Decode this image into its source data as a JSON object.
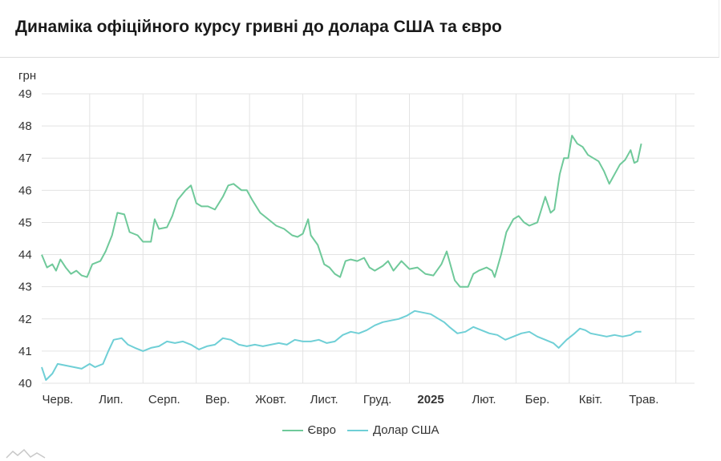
{
  "header": {
    "title": "Динаміка офіційного курсу гривні до долара США та євро"
  },
  "chart_data": {
    "type": "line",
    "ylabel": "грн",
    "ylim": [
      40,
      49
    ],
    "yticks": [
      40,
      41,
      42,
      43,
      44,
      45,
      46,
      47,
      48,
      49
    ],
    "x_tick_labels": [
      {
        "label": "Черв.",
        "x": 0.3
      },
      {
        "label": "Лип.",
        "x": 1.3
      },
      {
        "label": "Серп.",
        "x": 2.3
      },
      {
        "label": "Вер.",
        "x": 3.3
      },
      {
        "label": "Жовт.",
        "x": 4.3
      },
      {
        "label": "Лист.",
        "x": 5.3
      },
      {
        "label": "Груд.",
        "x": 6.3
      },
      {
        "label": "2025",
        "x": 7.3,
        "bold": true
      },
      {
        "label": "Лют.",
        "x": 8.3
      },
      {
        "label": "Бер.",
        "x": 9.3
      },
      {
        "label": "Квіт.",
        "x": 10.3
      },
      {
        "label": "Трав.",
        "x": 11.3
      }
    ],
    "gridlines_x": [
      0.9,
      1.9,
      2.9,
      3.9,
      4.9,
      5.9,
      6.9,
      7.9,
      8.9,
      9.9,
      10.9,
      11.9
    ],
    "xlim": [
      0,
      12.25
    ],
    "grid": true,
    "legend_position": "bottom",
    "series": [
      {
        "name": "Євро",
        "color": "#6fc99a",
        "points": [
          [
            0.0,
            44.0
          ],
          [
            0.1,
            43.6
          ],
          [
            0.2,
            43.7
          ],
          [
            0.27,
            43.5
          ],
          [
            0.35,
            43.85
          ],
          [
            0.45,
            43.6
          ],
          [
            0.55,
            43.4
          ],
          [
            0.65,
            43.5
          ],
          [
            0.75,
            43.35
          ],
          [
            0.85,
            43.3
          ],
          [
            0.95,
            43.7
          ],
          [
            1.1,
            43.8
          ],
          [
            1.2,
            44.1
          ],
          [
            1.32,
            44.6
          ],
          [
            1.42,
            45.3
          ],
          [
            1.55,
            45.25
          ],
          [
            1.65,
            44.7
          ],
          [
            1.8,
            44.6
          ],
          [
            1.9,
            44.4
          ],
          [
            2.05,
            44.4
          ],
          [
            2.12,
            45.1
          ],
          [
            2.2,
            44.8
          ],
          [
            2.35,
            44.85
          ],
          [
            2.45,
            45.2
          ],
          [
            2.55,
            45.7
          ],
          [
            2.7,
            46.0
          ],
          [
            2.8,
            46.15
          ],
          [
            2.9,
            45.6
          ],
          [
            3.0,
            45.5
          ],
          [
            3.12,
            45.5
          ],
          [
            3.25,
            45.4
          ],
          [
            3.4,
            45.8
          ],
          [
            3.5,
            46.15
          ],
          [
            3.6,
            46.2
          ],
          [
            3.75,
            46.0
          ],
          [
            3.85,
            46.0
          ],
          [
            3.95,
            45.7
          ],
          [
            4.1,
            45.3
          ],
          [
            4.25,
            45.1
          ],
          [
            4.4,
            44.9
          ],
          [
            4.55,
            44.8
          ],
          [
            4.7,
            44.6
          ],
          [
            4.8,
            44.55
          ],
          [
            4.9,
            44.65
          ],
          [
            5.0,
            45.1
          ],
          [
            5.05,
            44.6
          ],
          [
            5.18,
            44.3
          ],
          [
            5.3,
            43.7
          ],
          [
            5.4,
            43.6
          ],
          [
            5.5,
            43.4
          ],
          [
            5.6,
            43.3
          ],
          [
            5.7,
            43.8
          ],
          [
            5.8,
            43.85
          ],
          [
            5.92,
            43.8
          ],
          [
            6.05,
            43.9
          ],
          [
            6.15,
            43.6
          ],
          [
            6.25,
            43.5
          ],
          [
            6.4,
            43.65
          ],
          [
            6.5,
            43.8
          ],
          [
            6.6,
            43.5
          ],
          [
            6.75,
            43.8
          ],
          [
            6.9,
            43.55
          ],
          [
            7.05,
            43.6
          ],
          [
            7.2,
            43.4
          ],
          [
            7.35,
            43.35
          ],
          [
            7.5,
            43.7
          ],
          [
            7.6,
            44.1
          ],
          [
            7.75,
            43.2
          ],
          [
            7.85,
            43.0
          ],
          [
            8.0,
            43.0
          ],
          [
            8.1,
            43.4
          ],
          [
            8.2,
            43.5
          ],
          [
            8.35,
            43.6
          ],
          [
            8.45,
            43.5
          ],
          [
            8.5,
            43.3
          ],
          [
            8.62,
            44.0
          ],
          [
            8.72,
            44.7
          ],
          [
            8.85,
            45.1
          ],
          [
            8.95,
            45.2
          ],
          [
            9.05,
            45.0
          ],
          [
            9.15,
            44.9
          ],
          [
            9.3,
            45.0
          ],
          [
            9.45,
            45.8
          ],
          [
            9.55,
            45.3
          ],
          [
            9.62,
            45.4
          ],
          [
            9.72,
            46.5
          ],
          [
            9.8,
            47.0
          ],
          [
            9.88,
            47.0
          ],
          [
            9.95,
            47.7
          ],
          [
            10.05,
            47.45
          ],
          [
            10.15,
            47.35
          ],
          [
            10.25,
            47.1
          ],
          [
            10.35,
            47.0
          ],
          [
            10.45,
            46.9
          ],
          [
            10.55,
            46.6
          ],
          [
            10.65,
            46.2
          ],
          [
            10.75,
            46.5
          ],
          [
            10.85,
            46.8
          ],
          [
            10.95,
            46.95
          ],
          [
            11.05,
            47.25
          ],
          [
            11.12,
            46.85
          ],
          [
            11.18,
            46.9
          ],
          [
            11.25,
            47.45
          ]
        ]
      },
      {
        "name": "Долар США",
        "color": "#6fcfd6",
        "points": [
          [
            0.0,
            40.5
          ],
          [
            0.08,
            40.1
          ],
          [
            0.2,
            40.3
          ],
          [
            0.3,
            40.6
          ],
          [
            0.45,
            40.55
          ],
          [
            0.6,
            40.5
          ],
          [
            0.75,
            40.45
          ],
          [
            0.9,
            40.6
          ],
          [
            1.0,
            40.5
          ],
          [
            1.15,
            40.6
          ],
          [
            1.25,
            41.0
          ],
          [
            1.35,
            41.35
          ],
          [
            1.5,
            41.4
          ],
          [
            1.62,
            41.2
          ],
          [
            1.75,
            41.1
          ],
          [
            1.9,
            41.0
          ],
          [
            2.05,
            41.1
          ],
          [
            2.2,
            41.15
          ],
          [
            2.35,
            41.3
          ],
          [
            2.5,
            41.25
          ],
          [
            2.65,
            41.3
          ],
          [
            2.8,
            41.2
          ],
          [
            2.95,
            41.05
          ],
          [
            3.1,
            41.15
          ],
          [
            3.25,
            41.2
          ],
          [
            3.4,
            41.4
          ],
          [
            3.55,
            41.35
          ],
          [
            3.7,
            41.2
          ],
          [
            3.85,
            41.15
          ],
          [
            4.0,
            41.2
          ],
          [
            4.15,
            41.15
          ],
          [
            4.3,
            41.2
          ],
          [
            4.45,
            41.25
          ],
          [
            4.6,
            41.2
          ],
          [
            4.75,
            41.35
          ],
          [
            4.9,
            41.3
          ],
          [
            5.05,
            41.3
          ],
          [
            5.2,
            41.35
          ],
          [
            5.35,
            41.25
          ],
          [
            5.5,
            41.3
          ],
          [
            5.65,
            41.5
          ],
          [
            5.8,
            41.6
          ],
          [
            5.95,
            41.55
          ],
          [
            6.1,
            41.65
          ],
          [
            6.25,
            41.8
          ],
          [
            6.4,
            41.9
          ],
          [
            6.55,
            41.95
          ],
          [
            6.7,
            42.0
          ],
          [
            6.85,
            42.1
          ],
          [
            7.0,
            42.25
          ],
          [
            7.15,
            42.2
          ],
          [
            7.3,
            42.15
          ],
          [
            7.45,
            42.0
          ],
          [
            7.55,
            41.9
          ],
          [
            7.65,
            41.75
          ],
          [
            7.8,
            41.55
          ],
          [
            7.95,
            41.6
          ],
          [
            8.1,
            41.75
          ],
          [
            8.25,
            41.65
          ],
          [
            8.4,
            41.55
          ],
          [
            8.55,
            41.5
          ],
          [
            8.7,
            41.35
          ],
          [
            8.85,
            41.45
          ],
          [
            9.0,
            41.55
          ],
          [
            9.15,
            41.6
          ],
          [
            9.3,
            41.45
          ],
          [
            9.45,
            41.35
          ],
          [
            9.6,
            41.25
          ],
          [
            9.7,
            41.1
          ],
          [
            9.85,
            41.35
          ],
          [
            10.0,
            41.55
          ],
          [
            10.1,
            41.7
          ],
          [
            10.2,
            41.65
          ],
          [
            10.3,
            41.55
          ],
          [
            10.45,
            41.5
          ],
          [
            10.6,
            41.45
          ],
          [
            10.75,
            41.5
          ],
          [
            10.9,
            41.45
          ],
          [
            11.05,
            41.5
          ],
          [
            11.15,
            41.6
          ],
          [
            11.25,
            41.6
          ]
        ]
      }
    ]
  }
}
